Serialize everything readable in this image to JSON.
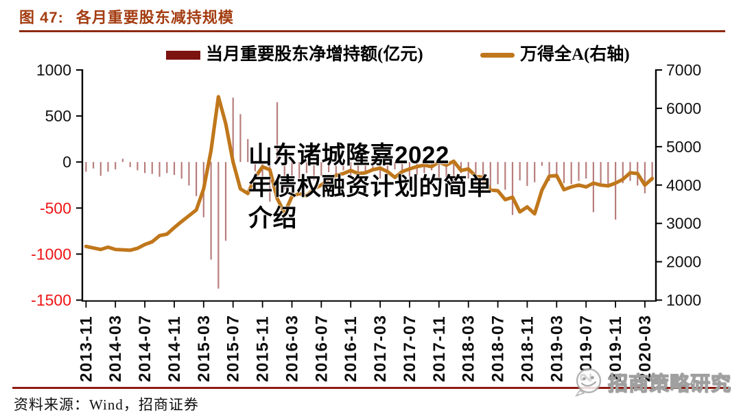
{
  "header": {
    "figure_label": "图 47:",
    "figure_title": "各月重要股东减持规模",
    "title_color": "#a33c10",
    "rule_color": "#8d2a10"
  },
  "legend": {
    "items": [
      {
        "label": "当月重要股东净增持额(亿元)",
        "marker": "bar-swatch",
        "color": "#7b1310"
      },
      {
        "label": "万得全A(右轴)",
        "marker": "line-swatch",
        "color": "#c0771b"
      }
    ]
  },
  "overlay_watermark": {
    "line1": "山东诸城隆嘉2022",
    "line2": "年债权融资计划的简单",
    "line3": "介绍"
  },
  "footer": {
    "source_text": "资料来源：Wind，招商证券",
    "rule_color": "#8d1c12"
  },
  "brand_watermark": {
    "icon": "wechat-smiley-logo",
    "text": "招商策略研究"
  },
  "chart_data": {
    "type": "combo",
    "x_tick_every": 4,
    "x": [
      "2013-11",
      "2013-12",
      "2014-01",
      "2014-02",
      "2014-03",
      "2014-04",
      "2014-05",
      "2014-06",
      "2014-07",
      "2014-08",
      "2014-09",
      "2014-10",
      "2014-11",
      "2014-12",
      "2015-01",
      "2015-02",
      "2015-03",
      "2015-04",
      "2015-05",
      "2015-06",
      "2015-07",
      "2015-08",
      "2015-09",
      "2015-10",
      "2015-11",
      "2015-12",
      "2016-01",
      "2016-02",
      "2016-03",
      "2016-04",
      "2016-05",
      "2016-06",
      "2016-07",
      "2016-08",
      "2016-09",
      "2016-10",
      "2016-11",
      "2016-12",
      "2017-01",
      "2017-02",
      "2017-03",
      "2017-04",
      "2017-05",
      "2017-06",
      "2017-07",
      "2017-08",
      "2017-09",
      "2017-10",
      "2017-11",
      "2017-12",
      "2018-01",
      "2018-02",
      "2018-03",
      "2018-04",
      "2018-05",
      "2018-06",
      "2018-07",
      "2018-08",
      "2018-09",
      "2018-10",
      "2018-11",
      "2018-12",
      "2019-01",
      "2019-02",
      "2019-03",
      "2019-04",
      "2019-05",
      "2019-06",
      "2019-07",
      "2019-08",
      "2019-09",
      "2019-10",
      "2019-11",
      "2019-12",
      "2020-01",
      "2020-02",
      "2020-03",
      "2020-04"
    ],
    "series": [
      {
        "name": "当月重要股东净增持额(亿元)",
        "type": "bar",
        "axis": "left",
        "color": "#7b1310",
        "values": [
          -105,
          -70,
          -150,
          -105,
          -80,
          35,
          -55,
          -90,
          -120,
          -130,
          -160,
          -120,
          -140,
          -180,
          -255,
          -370,
          -600,
          -1060,
          -1375,
          -855,
          700,
          520,
          250,
          -100,
          -280,
          -430,
          650,
          -300,
          -150,
          -180,
          -120,
          -200,
          -150,
          -110,
          -130,
          -90,
          -160,
          -240,
          -120,
          -100,
          -180,
          -150,
          -80,
          -130,
          -160,
          -140,
          -120,
          -90,
          -200,
          -170,
          -230,
          -120,
          -180,
          -220,
          -330,
          -280,
          -240,
          -300,
          -575,
          -200,
          -260,
          -220,
          -40,
          -205,
          -180,
          -230,
          -240,
          -205,
          -180,
          -545,
          -230,
          -255,
          -625,
          -230,
          -205,
          -255,
          -340,
          -205
        ]
      },
      {
        "name": "万得全A(右轴)",
        "type": "line",
        "axis": "right",
        "color": "#c0771b",
        "values": [
          2400,
          2360,
          2320,
          2380,
          2320,
          2310,
          2300,
          2350,
          2450,
          2520,
          2680,
          2720,
          2890,
          3050,
          3200,
          3350,
          3900,
          4900,
          6300,
          5600,
          4600,
          3900,
          3780,
          4200,
          4475,
          4400,
          3650,
          3270,
          3700,
          3780,
          3720,
          3900,
          4000,
          4150,
          4250,
          4300,
          4380,
          4300,
          4320,
          4400,
          4440,
          4350,
          4200,
          4350,
          4420,
          4480,
          4520,
          4480,
          4600,
          4520,
          4620,
          4380,
          4420,
          4230,
          4200,
          3870,
          3850,
          3620,
          3680,
          3300,
          3430,
          3250,
          3870,
          4230,
          4250,
          3880,
          3950,
          4000,
          3950,
          4050,
          4000,
          3980,
          4050,
          4150,
          4320,
          4300,
          4000,
          4170
        ]
      }
    ],
    "left_axis": {
      "ticks": [
        1000,
        500,
        0,
        -500,
        -1000,
        -1500
      ],
      "range": [
        -1500,
        1000
      ],
      "negative_color": "#f01212",
      "label_color": "#111111"
    },
    "right_axis": {
      "ticks": [
        7000,
        6000,
        5000,
        4000,
        3000,
        2000,
        1000
      ],
      "range": [
        1000,
        7000
      ],
      "label_color": "#111111"
    },
    "grid": false,
    "legend_position": "top"
  }
}
